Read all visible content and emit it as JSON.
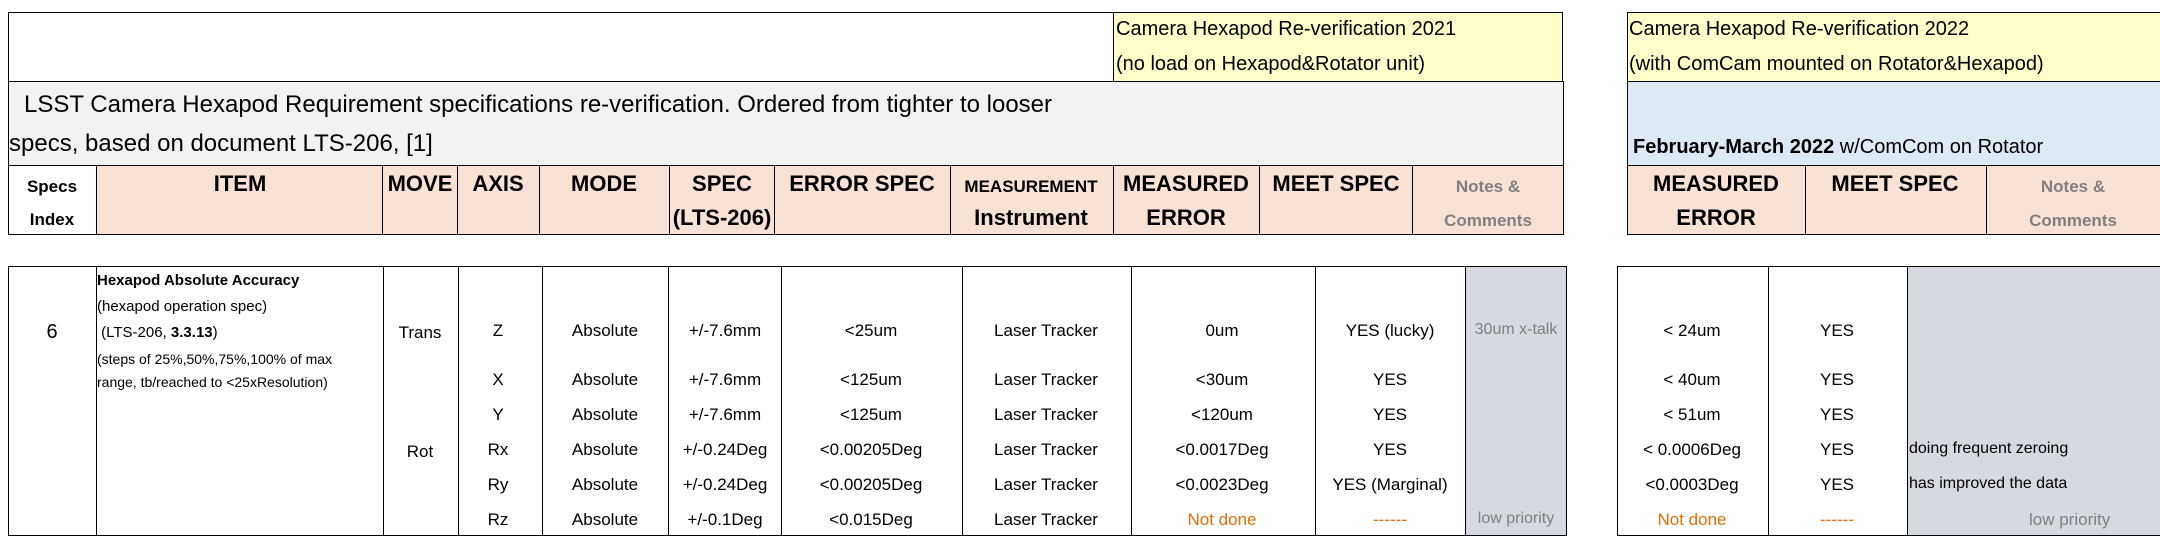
{
  "header": {
    "box2021_line1": "Camera Hexapod Re-verification 2021",
    "box2021_line2": "(no load on Hexapod&Rotator unit)",
    "box2022_line1": "Camera Hexapod Re-verification 2022",
    "box2022_line2": "(with ComCam mounted on Rotator&Hexapod)",
    "title_line1": "LSST Camera Hexapod Requirement specifications re-verification. Ordered from tighter to looser",
    "title_line2": "specs, based on document LTS-206, [1]",
    "feb_bold": "February-March 2022",
    "feb_rest": " w/ComCom on Rotator"
  },
  "columns": {
    "specs_index_1": "Specs",
    "specs_index_2": "Index",
    "item": "ITEM",
    "move": "MOVE",
    "axis": "AXIS",
    "mode": "MODE",
    "spec_1": "SPEC",
    "spec_2": "(LTS-206)",
    "error_spec": "ERROR SPEC",
    "measurement_1": "MEASUREMENT",
    "measurement_2": "Instrument",
    "measured_1": "MEASURED",
    "measured_2": "ERROR",
    "meet_spec": "MEET SPEC",
    "notes_1": "Notes &",
    "notes_2": "Comments",
    "r_measured_1": "MEASURED",
    "r_measured_2": "ERROR",
    "r_meet_spec": "MEET SPEC",
    "r_notes_1": "Notes &",
    "r_notes_2": "Comments"
  },
  "group": {
    "index": "6",
    "item_title": "Hexapod Absolute Accuracy",
    "item_line2": "(hexapod operation spec)",
    "item_line3_pre": " (LTS-206, ",
    "item_line3_bold": "3.3.13",
    "item_line3_post": ")",
    "item_line4": "(steps of 25%,50%,75%,100% of max",
    "item_line5": "range, tb/reached to <25xResolution)",
    "move_trans": "Trans",
    "move_rot": "Rot"
  },
  "rows": [
    {
      "axis": "Z",
      "mode": "Absolute",
      "spec": "+/-7.6mm",
      "error_spec": "<25um",
      "instrument": "Laser Tracker",
      "measured": "0um",
      "meet": "YES (lucky)",
      "note": "30um x-talk",
      "r_measured": "< 24um",
      "r_meet": "YES",
      "r_note": ""
    },
    {
      "axis": "X",
      "mode": "Absolute",
      "spec": "+/-7.6mm",
      "error_spec": "<125um",
      "instrument": "Laser Tracker",
      "measured": "<30um",
      "meet": "YES",
      "note": "",
      "r_measured": "< 40um",
      "r_meet": "YES",
      "r_note": ""
    },
    {
      "axis": "Y",
      "mode": "Absolute",
      "spec": "+/-7.6mm",
      "error_spec": "<125um",
      "instrument": "Laser Tracker",
      "measured": "<120um",
      "meet": "YES",
      "note": "",
      "r_measured": "< 51um",
      "r_meet": "YES",
      "r_note": ""
    },
    {
      "axis": "Rx",
      "mode": "Absolute",
      "spec": "+/-0.24Deg",
      "error_spec": "<0.00205Deg",
      "instrument": "Laser Tracker",
      "measured": "<0.0017Deg",
      "meet": "YES",
      "note": "",
      "r_measured": "< 0.0006Deg",
      "r_meet": "YES",
      "r_note": "doing frequent zeroing"
    },
    {
      "axis": "Ry",
      "mode": "Absolute",
      "spec": "+/-0.24Deg",
      "error_spec": "<0.00205Deg",
      "instrument": "Laser Tracker",
      "measured": "<0.0023Deg",
      "meet": "YES (Marginal)",
      "note": "",
      "r_measured": "<0.0003Deg",
      "r_meet": "YES",
      "r_note": "has improved the data"
    },
    {
      "axis": "Rz",
      "mode": "Absolute",
      "spec": "+/-0.1Deg",
      "error_spec": "<0.015Deg",
      "instrument": "Laser Tracker",
      "measured": "Not done",
      "meet": "------",
      "note": "low priority",
      "r_measured": "Not done",
      "r_meet": "------",
      "r_note": "low priority"
    }
  ],
  "colors": {
    "yellow": "#ffffcc",
    "grey_title": "#f2f2f2",
    "blue": "#dde9f5",
    "peach": "#f8e2d6",
    "note_grey": "#d6d9df",
    "orange": "#e46c0a"
  }
}
